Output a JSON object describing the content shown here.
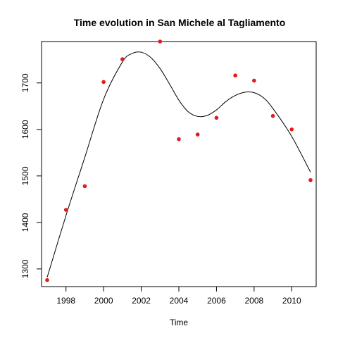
{
  "chart_data": {
    "type": "scatter",
    "title": "Time evolution in San Michele al Tagliamento",
    "xlabel": "Time",
    "ylabel": "",
    "xlim": [
      1996.7,
      2011.3
    ],
    "ylim": [
      1262,
      1789
    ],
    "x_ticks": [
      1998,
      2000,
      2002,
      2004,
      2006,
      2008,
      2010
    ],
    "y_ticks": [
      1300,
      1400,
      1500,
      1600,
      1700
    ],
    "grid": false,
    "legend": "none",
    "point_color": "#e31a1c",
    "line_color": "#000000",
    "series": [
      {
        "type": "scatter",
        "x": [
          1997,
          1998,
          1999,
          2000,
          2001,
          2003,
          2004,
          2005,
          2006,
          2007,
          2008,
          2009,
          2010,
          2011
        ],
        "values": [
          1276,
          1427,
          1478,
          1702,
          1751,
          1789,
          1579,
          1589,
          1625,
          1716,
          1705,
          1629,
          1600,
          1491
        ]
      },
      {
        "type": "line",
        "x": [
          1997,
          1998,
          1999,
          2000,
          2001,
          2001.5,
          2002,
          2002.5,
          2003,
          2003.5,
          2004,
          2004.5,
          2005,
          2005.5,
          2006,
          2006.5,
          2007,
          2007.5,
          2008,
          2008.5,
          2009,
          2010,
          2011
        ],
        "values": [
          1282,
          1415,
          1540,
          1665,
          1745,
          1763,
          1766,
          1755,
          1731,
          1698,
          1663,
          1638,
          1628,
          1630,
          1642,
          1660,
          1673,
          1680,
          1679,
          1668,
          1645,
          1585,
          1508
        ]
      }
    ]
  }
}
